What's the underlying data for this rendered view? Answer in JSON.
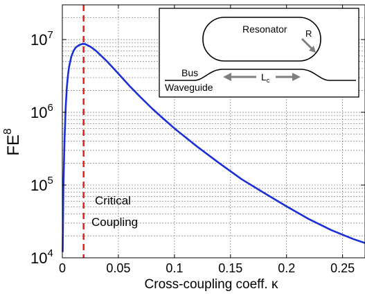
{
  "chart_data": {
    "type": "line",
    "title": "",
    "xlabel": "Cross-coupling coeff. κ",
    "ylabel": {
      "base": "FE",
      "superscript": "8"
    },
    "xlim": [
      0,
      0.27
    ],
    "ylim": [
      10000,
      30000000
    ],
    "yscale": "log",
    "grid": true,
    "legend": "none",
    "x_ticks": [
      {
        "value": 0,
        "label": "0"
      },
      {
        "value": 0.05,
        "label": "0.05"
      },
      {
        "value": 0.1,
        "label": "0.1"
      },
      {
        "value": 0.15,
        "label": "0.15"
      },
      {
        "value": 0.2,
        "label": "0.2"
      },
      {
        "value": 0.25,
        "label": "0.25"
      }
    ],
    "y_ticks": [
      {
        "value": 10000,
        "base": "10",
        "exp": "4"
      },
      {
        "value": 100000,
        "base": "10",
        "exp": "5"
      },
      {
        "value": 1000000,
        "base": "10",
        "exp": "6"
      },
      {
        "value": 10000000,
        "base": "10",
        "exp": "7"
      }
    ],
    "series": [
      {
        "color": "#1a2fd6",
        "points": [
          [
            0.0003,
            12000
          ],
          [
            0.001,
            100000
          ],
          [
            0.002,
            430000
          ],
          [
            0.003,
            1200000
          ],
          [
            0.004,
            2200000
          ],
          [
            0.005,
            3200000
          ],
          [
            0.006,
            4200000
          ],
          [
            0.008,
            5800000
          ],
          [
            0.01,
            7000000
          ],
          [
            0.012,
            7800000
          ],
          [
            0.015,
            8400000
          ],
          [
            0.018,
            8700000
          ],
          [
            0.02,
            8700000
          ],
          [
            0.025,
            8000000
          ],
          [
            0.03,
            7000000
          ],
          [
            0.04,
            5000000
          ],
          [
            0.05,
            3400000
          ],
          [
            0.06,
            2300000
          ],
          [
            0.07,
            1600000
          ],
          [
            0.08,
            1130000
          ],
          [
            0.09,
            820000
          ],
          [
            0.1,
            600000
          ],
          [
            0.12,
            340000
          ],
          [
            0.14,
            200000
          ],
          [
            0.16,
            120000
          ],
          [
            0.18,
            78000
          ],
          [
            0.2,
            51000
          ],
          [
            0.22,
            34000
          ],
          [
            0.24,
            24000
          ],
          [
            0.26,
            18000
          ],
          [
            0.27,
            16000
          ]
        ]
      }
    ],
    "critical_line": {
      "x": 0.019,
      "color": "#e8221b"
    },
    "annotation": {
      "line1": "Critical",
      "line2": "Coupling"
    },
    "inset": {
      "resonator_label": "Resonator",
      "radius_label": "R",
      "bus_label_1": "Bus",
      "bus_label_2": "Waveguide",
      "coupling_length_label": "L",
      "coupling_length_subscript": "c"
    }
  }
}
